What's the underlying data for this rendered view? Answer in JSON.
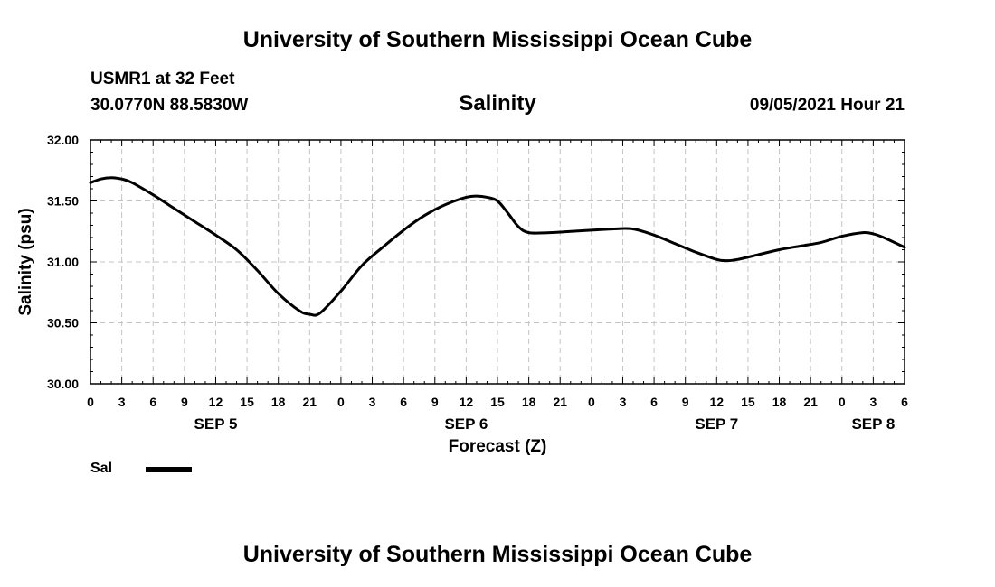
{
  "header": {
    "title": "University of Southern Mississippi Ocean Cube",
    "station": "USMR1 at 32 Feet",
    "coords": "30.0770N  88.5830W",
    "variable": "Salinity",
    "datetime": "09/05/2021 Hour 21"
  },
  "footer": {
    "title": "University of Southern Mississippi Ocean Cube"
  },
  "legend": {
    "label": "Sal",
    "color": "#000000"
  },
  "chart_data": {
    "type": "line",
    "title": "Salinity",
    "xlabel": "Forecast (Z)",
    "ylabel": "Salinity (psu)",
    "xlim": [
      0,
      78
    ],
    "ylim": [
      30.0,
      32.0
    ],
    "y_ticks": [
      "30.00",
      "30.50",
      "31.00",
      "31.50",
      "32.00"
    ],
    "x_ticks": [
      "0",
      "3",
      "6",
      "9",
      "12",
      "15",
      "18",
      "21",
      "0",
      "3",
      "6",
      "9",
      "12",
      "15",
      "18",
      "21",
      "0",
      "3",
      "6",
      "9",
      "12",
      "15",
      "18",
      "21",
      "0",
      "3",
      "6"
    ],
    "day_labels": [
      {
        "hour": 12,
        "label": "SEP 5"
      },
      {
        "hour": 36,
        "label": "SEP 6"
      },
      {
        "hour": 60,
        "label": "SEP 7"
      },
      {
        "hour": 75,
        "label": "SEP 8"
      }
    ],
    "grid": true,
    "series": [
      {
        "name": "Sal",
        "x": [
          0,
          1,
          2,
          3,
          4,
          6,
          8,
          10,
          12,
          14,
          16,
          18,
          20,
          21,
          22,
          24,
          26,
          28,
          30,
          32,
          34,
          36,
          37,
          38,
          39,
          40,
          41,
          42,
          44,
          46,
          48,
          50,
          52,
          54,
          56,
          58,
          60,
          61,
          62,
          64,
          66,
          68,
          70,
          72,
          74,
          75,
          76,
          78
        ],
        "y": [
          31.65,
          31.68,
          31.69,
          31.68,
          31.65,
          31.55,
          31.44,
          31.33,
          31.22,
          31.1,
          30.93,
          30.74,
          30.6,
          30.57,
          30.58,
          30.76,
          30.97,
          31.12,
          31.26,
          31.38,
          31.47,
          31.53,
          31.54,
          31.53,
          31.5,
          31.4,
          31.29,
          31.24,
          31.24,
          31.25,
          31.26,
          31.27,
          31.27,
          31.22,
          31.15,
          31.08,
          31.02,
          31.01,
          31.02,
          31.06,
          31.1,
          31.13,
          31.16,
          31.21,
          31.24,
          31.23,
          31.2,
          31.12
        ]
      }
    ]
  }
}
